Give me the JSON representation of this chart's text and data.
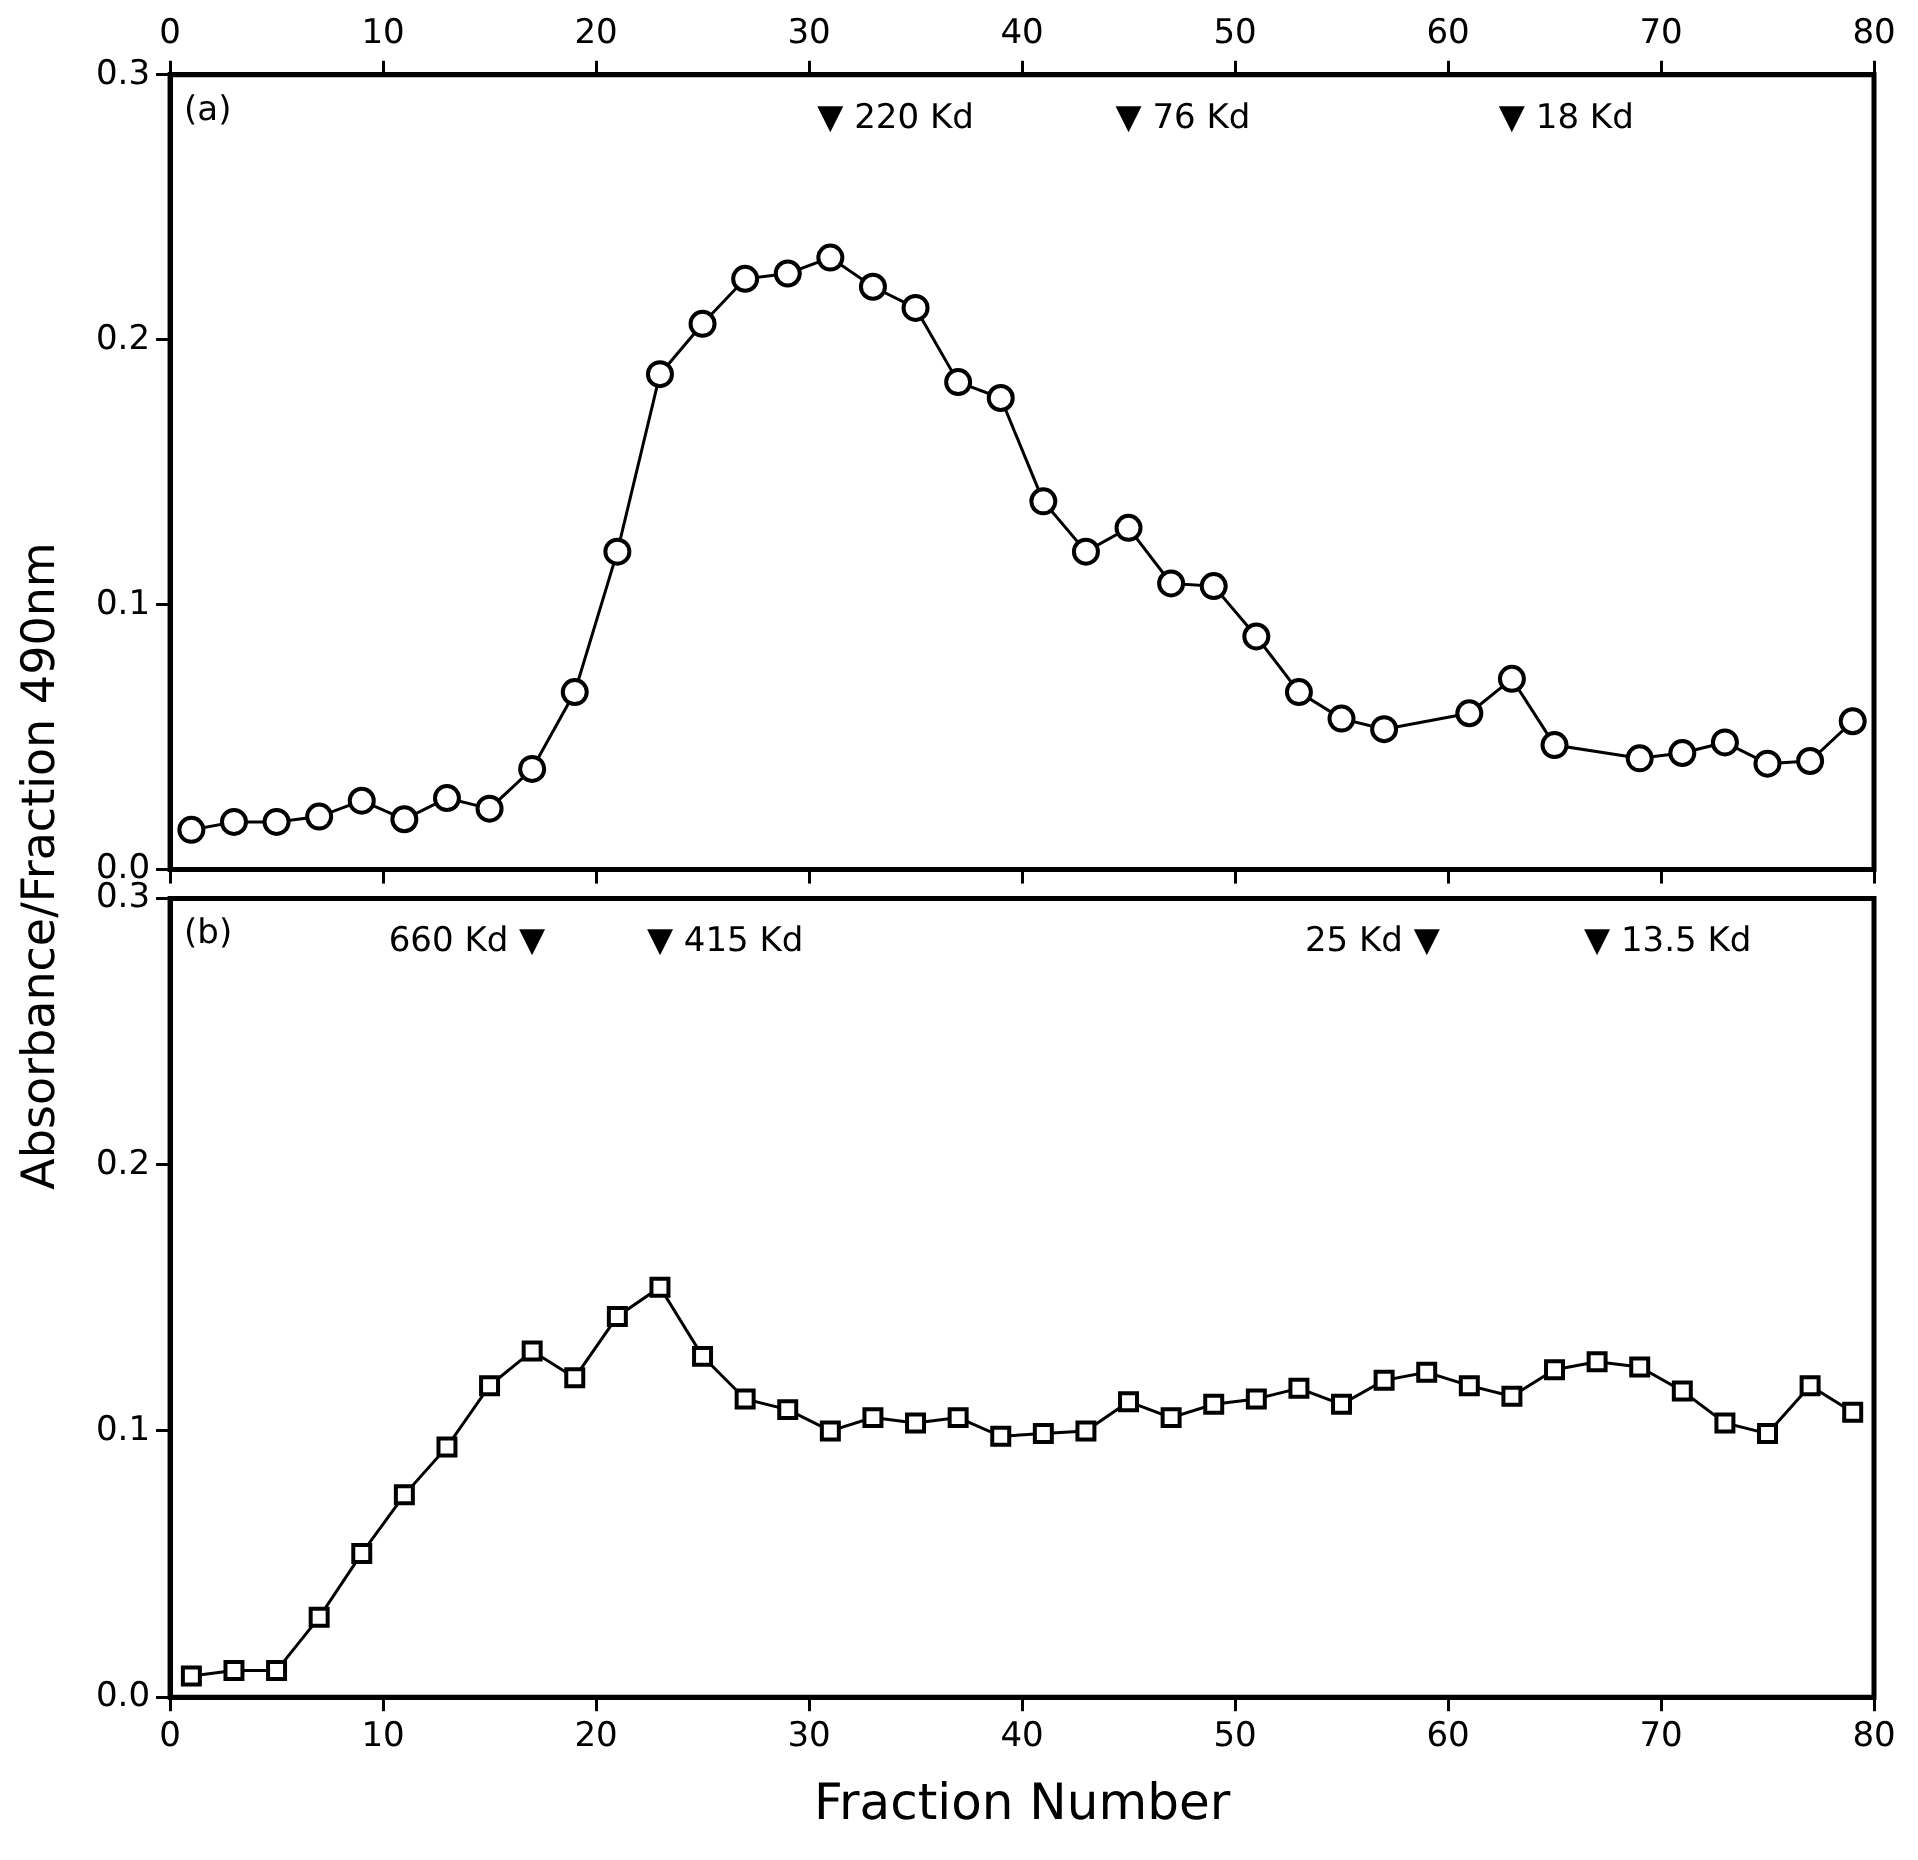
{
  "chart_data": [
    {
      "type": "line",
      "ylabel": "Absorbance/Fraction 490nm",
      "marker": "circle",
      "grid": false,
      "legend": false,
      "xlim": [
        0,
        80
      ],
      "xticks": [
        0,
        10,
        20,
        30,
        40,
        50,
        60,
        70,
        80
      ],
      "ylim": [
        0,
        0.3
      ],
      "yticks": [
        {
          "value": 0,
          "label": "0.0"
        },
        {
          "value": 0.1,
          "label": "0.1"
        },
        {
          "value": 0.2,
          "label": "0.2"
        },
        {
          "value": 0.3,
          "label": "0.3"
        }
      ],
      "series": [
        {
          "color": "#000000",
          "x": [
            1,
            3,
            5,
            7,
            9,
            11,
            13,
            15,
            17,
            19,
            21,
            23,
            25,
            27,
            29,
            31,
            33,
            35,
            37,
            39,
            41,
            43,
            45,
            47,
            49,
            51,
            53,
            55,
            57,
            61,
            63,
            65,
            69,
            71,
            73,
            75,
            77,
            79
          ],
          "values": [
            0.015,
            0.018,
            0.018,
            0.02,
            0.026,
            0.019,
            0.027,
            0.023,
            0.038,
            0.067,
            0.12,
            0.187,
            0.206,
            0.223,
            0.225,
            0.231,
            0.22,
            0.212,
            0.184,
            0.178,
            0.139,
            0.12,
            0.129,
            0.108,
            0.107,
            0.088,
            0.067,
            0.057,
            0.053,
            0.059,
            0.072,
            0.047,
            0.042,
            0.044,
            0.048,
            0.04,
            0.041,
            0.056
          ]
        }
      ],
      "annotations": [
        "(a)",
        "▼ 220 Kd",
        "▼ 76 Kd",
        "▼ 18 Kd"
      ]
    },
    {
      "type": "line",
      "xlabel": "Fraction Number",
      "marker": "square",
      "grid": false,
      "legend": false,
      "xlim": [
        0,
        80
      ],
      "xticks": [
        0,
        10,
        20,
        30,
        40,
        50,
        60,
        70,
        80
      ],
      "ylim": [
        0,
        0.3
      ],
      "yticks": [
        {
          "value": 0,
          "label": "0.0"
        },
        {
          "value": 0.1,
          "label": "0.1"
        },
        {
          "value": 0.2,
          "label": "0.2"
        },
        {
          "value": 0.3,
          "label": "0.3"
        }
      ],
      "series": [
        {
          "color": "#000000",
          "x": [
            1,
            3,
            5,
            7,
            9,
            11,
            13,
            15,
            17,
            19,
            21,
            23,
            25,
            27,
            29,
            31,
            33,
            35,
            37,
            39,
            41,
            43,
            45,
            47,
            49,
            51,
            53,
            55,
            57,
            59,
            61,
            63,
            65,
            67,
            69,
            71,
            73,
            75,
            77,
            79
          ],
          "values": [
            0.008,
            0.01,
            0.01,
            0.03,
            0.054,
            0.076,
            0.094,
            0.117,
            0.13,
            0.12,
            0.143,
            0.154,
            0.128,
            0.112,
            0.108,
            0.1,
            0.105,
            0.103,
            0.105,
            0.098,
            0.099,
            0.1,
            0.111,
            0.105,
            0.11,
            0.112,
            0.116,
            0.11,
            0.119,
            0.122,
            0.117,
            0.113,
            0.123,
            0.126,
            0.124,
            0.115,
            0.103,
            0.099,
            0.117,
            0.107
          ]
        }
      ],
      "annotations": [
        "(b)",
        "660 Kd ▼",
        "▼ 415 Kd",
        "25 Kd ▼",
        "▼ 13.5 Kd"
      ]
    }
  ]
}
